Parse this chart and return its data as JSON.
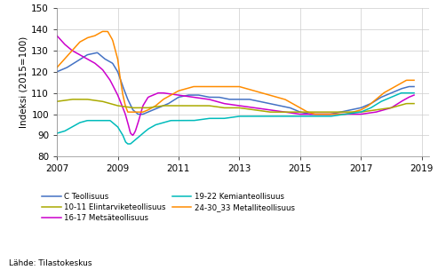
{
  "ylabel": "Indeksi (2015=100)",
  "source": "Lähde: Tilastokeskus",
  "ylim": [
    80,
    150
  ],
  "xlim": [
    2007.0,
    2019.25
  ],
  "yticks": [
    80,
    90,
    100,
    110,
    120,
    130,
    140,
    150
  ],
  "xticks": [
    2007,
    2009,
    2011,
    2013,
    2015,
    2017,
    2019
  ],
  "colors": {
    "C Teollisuus": "#4472C4",
    "16-17 Metsäteollisuus": "#CC00CC",
    "24-30_33 Metalliteollisuus": "#FF8C00",
    "10-11 Elintarviketeollisuus": "#AAAA00",
    "19-22 Kemianteollisuus": "#00BBBB"
  },
  "C_Teollisuus": [
    [
      2007.0,
      120
    ],
    [
      2007.33,
      122
    ],
    [
      2007.67,
      125
    ],
    [
      2008.0,
      128
    ],
    [
      2008.33,
      129
    ],
    [
      2008.58,
      126
    ],
    [
      2008.83,
      124
    ],
    [
      2009.0,
      120
    ],
    [
      2009.17,
      113
    ],
    [
      2009.33,
      107
    ],
    [
      2009.5,
      102
    ],
    [
      2009.67,
      100
    ],
    [
      2009.83,
      100
    ],
    [
      2010.0,
      101
    ],
    [
      2010.33,
      103
    ],
    [
      2010.67,
      105
    ],
    [
      2011.0,
      108
    ],
    [
      2011.33,
      109
    ],
    [
      2011.67,
      109
    ],
    [
      2012.0,
      108
    ],
    [
      2012.33,
      108
    ],
    [
      2012.67,
      107
    ],
    [
      2013.0,
      107
    ],
    [
      2013.33,
      107
    ],
    [
      2013.67,
      106
    ],
    [
      2014.0,
      105
    ],
    [
      2014.33,
      104
    ],
    [
      2014.67,
      103
    ],
    [
      2015.0,
      101
    ],
    [
      2015.33,
      100
    ],
    [
      2015.67,
      100
    ],
    [
      2016.0,
      100
    ],
    [
      2016.33,
      101
    ],
    [
      2016.67,
      102
    ],
    [
      2017.0,
      103
    ],
    [
      2017.33,
      105
    ],
    [
      2017.67,
      108
    ],
    [
      2018.0,
      110
    ],
    [
      2018.33,
      112
    ],
    [
      2018.58,
      113
    ],
    [
      2018.75,
      113
    ]
  ],
  "Mets_teollisuus": [
    [
      2007.0,
      137
    ],
    [
      2007.25,
      133
    ],
    [
      2007.5,
      130
    ],
    [
      2007.75,
      128
    ],
    [
      2008.0,
      126
    ],
    [
      2008.25,
      124
    ],
    [
      2008.5,
      121
    ],
    [
      2008.75,
      116
    ],
    [
      2009.0,
      109
    ],
    [
      2009.17,
      103
    ],
    [
      2009.25,
      100
    ],
    [
      2009.33,
      96
    ],
    [
      2009.42,
      91
    ],
    [
      2009.5,
      90
    ],
    [
      2009.58,
      92
    ],
    [
      2009.67,
      96
    ],
    [
      2009.75,
      100
    ],
    [
      2009.83,
      104
    ],
    [
      2010.0,
      108
    ],
    [
      2010.17,
      109
    ],
    [
      2010.33,
      110
    ],
    [
      2010.5,
      110
    ],
    [
      2011.0,
      109
    ],
    [
      2011.5,
      108
    ],
    [
      2012.0,
      107
    ],
    [
      2012.5,
      105
    ],
    [
      2013.0,
      104
    ],
    [
      2013.5,
      103
    ],
    [
      2014.0,
      102
    ],
    [
      2014.5,
      101
    ],
    [
      2015.0,
      100
    ],
    [
      2015.5,
      100
    ],
    [
      2016.0,
      100
    ],
    [
      2016.5,
      100
    ],
    [
      2017.0,
      100
    ],
    [
      2017.5,
      101
    ],
    [
      2018.0,
      103
    ],
    [
      2018.33,
      106
    ],
    [
      2018.58,
      108
    ],
    [
      2018.75,
      109
    ]
  ],
  "Metal_teollisuus": [
    [
      2007.0,
      122
    ],
    [
      2007.25,
      126
    ],
    [
      2007.5,
      130
    ],
    [
      2007.75,
      134
    ],
    [
      2008.0,
      136
    ],
    [
      2008.25,
      137
    ],
    [
      2008.5,
      139
    ],
    [
      2008.67,
      139
    ],
    [
      2008.83,
      135
    ],
    [
      2009.0,
      126
    ],
    [
      2009.08,
      117
    ],
    [
      2009.17,
      109
    ],
    [
      2009.25,
      104
    ],
    [
      2009.33,
      101
    ],
    [
      2009.42,
      101
    ],
    [
      2009.5,
      101
    ],
    [
      2009.67,
      101
    ],
    [
      2009.83,
      101
    ],
    [
      2010.0,
      102
    ],
    [
      2010.25,
      104
    ],
    [
      2010.5,
      107
    ],
    [
      2010.75,
      109
    ],
    [
      2011.0,
      111
    ],
    [
      2011.25,
      112
    ],
    [
      2011.5,
      113
    ],
    [
      2011.75,
      113
    ],
    [
      2012.0,
      113
    ],
    [
      2012.25,
      113
    ],
    [
      2012.5,
      113
    ],
    [
      2012.75,
      113
    ],
    [
      2013.0,
      113
    ],
    [
      2013.25,
      112
    ],
    [
      2013.5,
      111
    ],
    [
      2013.75,
      110
    ],
    [
      2014.0,
      109
    ],
    [
      2014.25,
      108
    ],
    [
      2014.5,
      107
    ],
    [
      2014.75,
      105
    ],
    [
      2015.0,
      103
    ],
    [
      2015.25,
      101
    ],
    [
      2015.5,
      100
    ],
    [
      2015.75,
      100
    ],
    [
      2016.0,
      100
    ],
    [
      2016.25,
      100
    ],
    [
      2016.5,
      100
    ],
    [
      2016.75,
      101
    ],
    [
      2017.0,
      102
    ],
    [
      2017.25,
      104
    ],
    [
      2017.5,
      107
    ],
    [
      2017.75,
      110
    ],
    [
      2018.0,
      112
    ],
    [
      2018.25,
      114
    ],
    [
      2018.5,
      116
    ],
    [
      2018.75,
      116
    ]
  ],
  "Elin_teollisuus": [
    [
      2007.0,
      106
    ],
    [
      2007.5,
      107
    ],
    [
      2008.0,
      107
    ],
    [
      2008.5,
      106
    ],
    [
      2009.0,
      104
    ],
    [
      2009.5,
      103
    ],
    [
      2010.0,
      103
    ],
    [
      2010.5,
      104
    ],
    [
      2011.0,
      104
    ],
    [
      2011.5,
      104
    ],
    [
      2012.0,
      104
    ],
    [
      2012.5,
      103
    ],
    [
      2013.0,
      103
    ],
    [
      2013.5,
      102
    ],
    [
      2014.0,
      101
    ],
    [
      2014.5,
      101
    ],
    [
      2015.0,
      101
    ],
    [
      2015.5,
      101
    ],
    [
      2016.0,
      101
    ],
    [
      2016.5,
      101
    ],
    [
      2017.0,
      101
    ],
    [
      2017.5,
      102
    ],
    [
      2018.0,
      103
    ],
    [
      2018.5,
      105
    ],
    [
      2018.75,
      105
    ]
  ],
  "Kem_teollisuus": [
    [
      2007.0,
      91
    ],
    [
      2007.25,
      92
    ],
    [
      2007.5,
      94
    ],
    [
      2007.75,
      96
    ],
    [
      2008.0,
      97
    ],
    [
      2008.25,
      97
    ],
    [
      2008.5,
      97
    ],
    [
      2008.75,
      97
    ],
    [
      2009.0,
      94
    ],
    [
      2009.17,
      90
    ],
    [
      2009.25,
      87
    ],
    [
      2009.33,
      86
    ],
    [
      2009.42,
      86
    ],
    [
      2009.5,
      87
    ],
    [
      2009.67,
      89
    ],
    [
      2009.83,
      91
    ],
    [
      2010.0,
      93
    ],
    [
      2010.25,
      95
    ],
    [
      2010.5,
      96
    ],
    [
      2010.75,
      97
    ],
    [
      2011.0,
      97
    ],
    [
      2011.5,
      97
    ],
    [
      2012.0,
      98
    ],
    [
      2012.5,
      98
    ],
    [
      2013.0,
      99
    ],
    [
      2013.5,
      99
    ],
    [
      2014.0,
      99
    ],
    [
      2014.5,
      99
    ],
    [
      2015.0,
      99
    ],
    [
      2015.5,
      99
    ],
    [
      2016.0,
      99
    ],
    [
      2016.5,
      100
    ],
    [
      2017.0,
      101
    ],
    [
      2017.33,
      103
    ],
    [
      2017.67,
      106
    ],
    [
      2018.0,
      108
    ],
    [
      2018.33,
      110
    ],
    [
      2018.58,
      110
    ],
    [
      2018.75,
      110
    ]
  ]
}
